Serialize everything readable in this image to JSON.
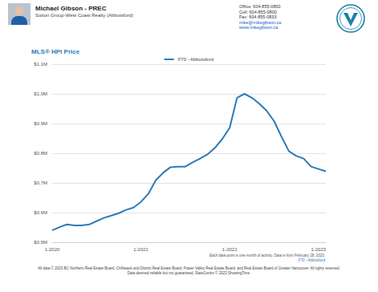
{
  "header": {
    "name": "Michael Gibson - PREC",
    "company": "Sutton Group-West Coast Realty (Abbotsford)",
    "contact": [
      "Office: 604-855-0800",
      "Cell: 604-855-0800",
      "Fax: 604-855-0833",
      "mike@mikegibson.ca",
      "www.mikegibson.ca"
    ]
  },
  "chart_data": {
    "type": "line",
    "title": "MLS® HPI Price",
    "categories": [
      "1-2020",
      null,
      null,
      null,
      null,
      null,
      null,
      null,
      null,
      null,
      null,
      null,
      "1-2021",
      null,
      null,
      null,
      null,
      null,
      null,
      null,
      null,
      null,
      null,
      null,
      "1-2022",
      null,
      null,
      null,
      null,
      null,
      null,
      null,
      null,
      null,
      null,
      null,
      "1-2023",
      null
    ],
    "series": [
      {
        "name": "F70 - Abbotsford",
        "color": "#2b7bba",
        "marker": "none",
        "values": [
          540000,
          551000,
          560000,
          557000,
          557000,
          560000,
          571000,
          582000,
          590000,
          598000,
          609000,
          617000,
          636000,
          663000,
          709000,
          734000,
          753000,
          755000,
          755000,
          769000,
          782000,
          796000,
          818000,
          848000,
          886000,
          987000,
          1000000,
          987000,
          967000,
          943000,
          908000,
          856000,
          807000,
          791000,
          782000,
          755000,
          747000,
          739000
        ]
      }
    ],
    "ylim": [
      500000,
      1100000
    ],
    "yticks": [
      {
        "value": 500000,
        "label": "$0.5M"
      },
      {
        "value": 600000,
        "label": "$0.6M"
      },
      {
        "value": 700000,
        "label": "$0.7M"
      },
      {
        "value": 800000,
        "label": "$0.8M"
      },
      {
        "value": 900000,
        "label": "$0.9M"
      },
      {
        "value": 1000000,
        "label": "$1.0M"
      },
      {
        "value": 1100000,
        "label": "$1.1M"
      }
    ],
    "grid": true,
    "legend": "top"
  },
  "notes": [
    "Each data point is one month of activity. Data is from February 28, 2023.",
    "F70 - Abbotsford"
  ],
  "footer": [
    "All data © 2023 BC Northern Real Estate Board, Chilliwack and District Real Estate Board, Fraser Valley Real Estate Board, and Real Estate Board of Greater Vancouver. All rights reserved.",
    "Data deemed reliable but not guaranteed. StatsCentre © 2023 ShowingTime."
  ]
}
